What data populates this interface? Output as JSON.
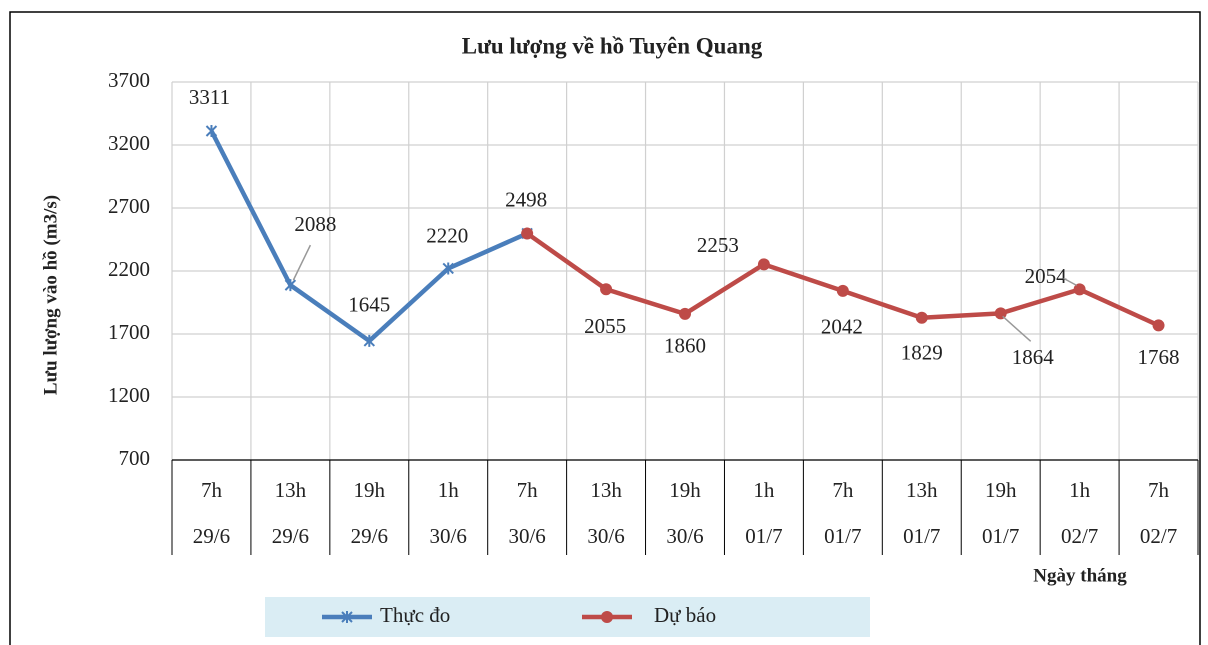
{
  "chart_data": {
    "type": "line",
    "title": "Lưu lượng về hồ Tuyên Quang",
    "y_label": "Lưu lượng vào hồ (m3/s)",
    "x_label": "Ngày tháng",
    "categories": [
      [
        "7h",
        "29/6"
      ],
      [
        "13h",
        "29/6"
      ],
      [
        "19h",
        "29/6"
      ],
      [
        "1h",
        "30/6"
      ],
      [
        "7h",
        "30/6"
      ],
      [
        "13h",
        "30/6"
      ],
      [
        "19h",
        "30/6"
      ],
      [
        "1h",
        "01/7"
      ],
      [
        "7h",
        "01/7"
      ],
      [
        "13h",
        "01/7"
      ],
      [
        "19h",
        "01/7"
      ],
      [
        "1h",
        "02/7"
      ],
      [
        "7h",
        "02/7"
      ]
    ],
    "series": [
      {
        "name": "Thực đo",
        "color": "#4a7ebb",
        "marker": "star",
        "values": [
          3311,
          2088,
          1645,
          2220,
          2498,
          null,
          null,
          null,
          null,
          null,
          null,
          null,
          null
        ]
      },
      {
        "name": "Dự báo",
        "color": "#be4b48",
        "marker": "circle",
        "values": [
          null,
          null,
          null,
          null,
          2498,
          2055,
          1860,
          2253,
          2042,
          1829,
          1864,
          2054,
          1768
        ]
      }
    ],
    "ylim": [
      700,
      3700
    ],
    "yticks": [
      700,
      1200,
      1700,
      2200,
      2700,
      3200,
      3700
    ],
    "grid": true,
    "legend": "bottom"
  }
}
